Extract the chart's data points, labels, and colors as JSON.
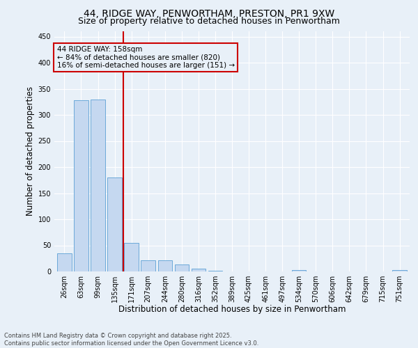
{
  "title_line1": "44, RIDGE WAY, PENWORTHAM, PRESTON, PR1 9XW",
  "title_line2": "Size of property relative to detached houses in Penwortham",
  "xlabel": "Distribution of detached houses by size in Penwortham",
  "ylabel": "Number of detached properties",
  "footer_line1": "Contains HM Land Registry data © Crown copyright and database right 2025.",
  "footer_line2": "Contains public sector information licensed under the Open Government Licence v3.0.",
  "categories": [
    "26sqm",
    "63sqm",
    "99sqm",
    "135sqm",
    "171sqm",
    "207sqm",
    "244sqm",
    "280sqm",
    "316sqm",
    "352sqm",
    "389sqm",
    "425sqm",
    "461sqm",
    "497sqm",
    "534sqm",
    "570sqm",
    "606sqm",
    "642sqm",
    "679sqm",
    "715sqm",
    "751sqm"
  ],
  "values": [
    35,
    328,
    330,
    180,
    55,
    22,
    21,
    13,
    5,
    2,
    0,
    0,
    0,
    0,
    3,
    0,
    0,
    0,
    0,
    0,
    3
  ],
  "bar_color": "#c5d8f0",
  "bar_edge_color": "#5a9fd4",
  "vline_x": 3.5,
  "vline_color": "#cc0000",
  "annotation_text": "44 RIDGE WAY: 158sqm\n← 84% of detached houses are smaller (820)\n16% of semi-detached houses are larger (151) →",
  "annotation_box_color": "#cc0000",
  "ylim": [
    0,
    460
  ],
  "yticks": [
    0,
    50,
    100,
    150,
    200,
    250,
    300,
    350,
    400,
    450
  ],
  "background_color": "#e8f0f8",
  "grid_color": "#ffffff",
  "title_fontsize": 10,
  "subtitle_fontsize": 9,
  "axis_label_fontsize": 8.5,
  "tick_fontsize": 7,
  "annotation_fontsize": 7.5,
  "footer_fontsize": 6
}
